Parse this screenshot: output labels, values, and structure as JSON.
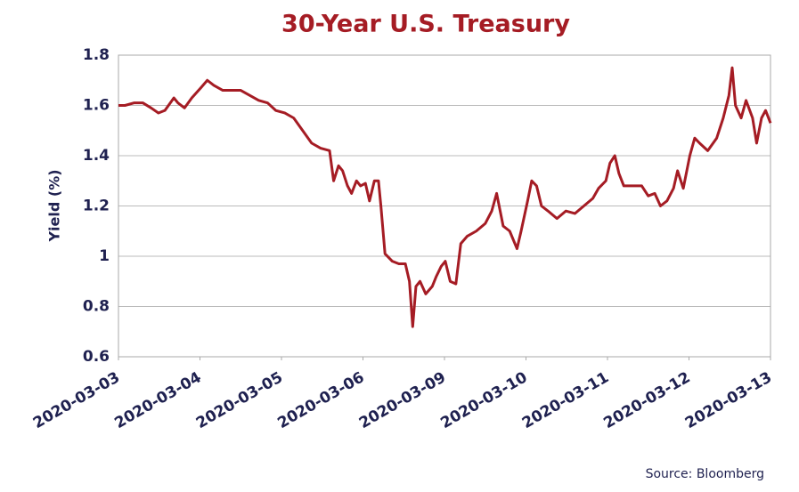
{
  "chart_data": {
    "type": "line",
    "title": "30-Year U.S. Treasury",
    "ylabel": "Yield (%)",
    "source": "Source: Bloomberg",
    "x": [
      0,
      0.08,
      0.19,
      0.3,
      0.4,
      0.49,
      0.57,
      0.68,
      0.73,
      0.81,
      0.9,
      1.01,
      1.09,
      1.17,
      1.28,
      1.39,
      1.5,
      1.61,
      1.72,
      1.83,
      1.93,
      2.04,
      2.15,
      2.26,
      2.37,
      2.48,
      2.59,
      2.64,
      2.7,
      2.75,
      2.81,
      2.86,
      2.92,
      2.97,
      3.03,
      3.08,
      3.14,
      3.19,
      3.22,
      3.27,
      3.36,
      3.44,
      3.52,
      3.57,
      3.61,
      3.65,
      3.7,
      3.77,
      3.85,
      3.9,
      3.96,
      4.01,
      4.07,
      4.14,
      4.2,
      4.28,
      4.39,
      4.5,
      4.58,
      4.64,
      4.72,
      4.8,
      4.89,
      4.94,
      5.02,
      5.07,
      5.13,
      5.19,
      5.27,
      5.38,
      5.49,
      5.6,
      5.71,
      5.82,
      5.89,
      5.98,
      6.03,
      6.09,
      6.14,
      6.2,
      6.31,
      6.42,
      6.5,
      6.58,
      6.65,
      6.73,
      6.81,
      6.86,
      6.93,
      7.01,
      7.07,
      7.13,
      7.23,
      7.34,
      7.42,
      7.49,
      7.53,
      7.57,
      7.64,
      7.7,
      7.78,
      7.83,
      7.89,
      7.94,
      8.0
    ],
    "series": [
      {
        "name": "30-Year U.S. Treasury",
        "color": "#a51c24",
        "values": [
          1.6,
          1.6,
          1.61,
          1.61,
          1.59,
          1.57,
          1.58,
          1.63,
          1.61,
          1.59,
          1.63,
          1.67,
          1.7,
          1.68,
          1.66,
          1.66,
          1.66,
          1.64,
          1.62,
          1.61,
          1.58,
          1.57,
          1.55,
          1.5,
          1.45,
          1.43,
          1.42,
          1.3,
          1.36,
          1.34,
          1.28,
          1.25,
          1.3,
          1.28,
          1.29,
          1.22,
          1.3,
          1.3,
          1.2,
          1.01,
          0.98,
          0.97,
          0.97,
          0.9,
          0.72,
          0.88,
          0.9,
          0.85,
          0.88,
          0.92,
          0.96,
          0.98,
          0.9,
          0.89,
          1.05,
          1.08,
          1.1,
          1.13,
          1.18,
          1.25,
          1.12,
          1.1,
          1.03,
          1.1,
          1.22,
          1.3,
          1.28,
          1.2,
          1.18,
          1.15,
          1.18,
          1.17,
          1.2,
          1.23,
          1.27,
          1.3,
          1.37,
          1.4,
          1.33,
          1.28,
          1.28,
          1.28,
          1.24,
          1.25,
          1.2,
          1.22,
          1.27,
          1.34,
          1.27,
          1.4,
          1.47,
          1.45,
          1.42,
          1.47,
          1.55,
          1.64,
          1.75,
          1.6,
          1.55,
          1.62,
          1.55,
          1.45,
          1.55,
          1.58,
          1.53
        ]
      }
    ],
    "xlim": [
      0,
      8
    ],
    "xticks": [
      {
        "value": 0,
        "label": "2020-03-03"
      },
      {
        "value": 1,
        "label": "2020-03-04"
      },
      {
        "value": 2,
        "label": "2020-03-05"
      },
      {
        "value": 3,
        "label": "2020-03-06"
      },
      {
        "value": 4,
        "label": "2020-03-09"
      },
      {
        "value": 5,
        "label": "2020-03-10"
      },
      {
        "value": 6,
        "label": "2020-03-11"
      },
      {
        "value": 7,
        "label": "2020-03-12"
      },
      {
        "value": 8,
        "label": "2020-03-13"
      }
    ],
    "ylim": [
      0.6,
      1.8
    ],
    "yticks": [
      0.6,
      0.8,
      1,
      1.2,
      1.4,
      1.6,
      1.8
    ],
    "grid": true
  }
}
